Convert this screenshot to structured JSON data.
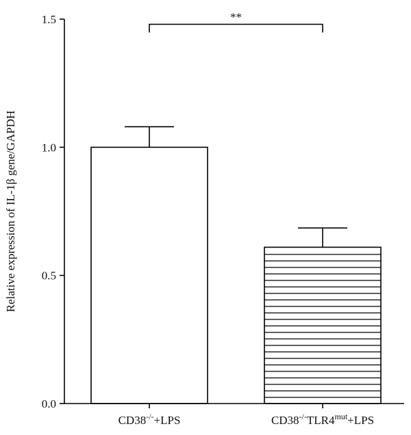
{
  "chart_data": {
    "type": "bar",
    "ylabel": "Relative expression of IL-1β gene/GAPDH",
    "ylim": [
      0,
      1.5
    ],
    "yticks": [
      "0.0",
      "0.5",
      "1.0",
      "1.5"
    ],
    "ytick_values": [
      0,
      0.5,
      1.0,
      1.5
    ],
    "categories": [
      {
        "base": "CD38",
        "sup1": "-/-",
        "mid": "+LPS",
        "sup2": "",
        "tail": ""
      },
      {
        "base": "CD38",
        "sup1": "-/-",
        "mid": "TLR4",
        "sup2": "mut",
        "tail": "+LPS"
      }
    ],
    "values": [
      1.0,
      0.61
    ],
    "errors": [
      0.08,
      0.075
    ],
    "fills": [
      "open",
      "horizontal-hatch"
    ],
    "significance": {
      "label": "**",
      "between": [
        0,
        1
      ],
      "y": 1.48
    },
    "grid": false,
    "legend": "none",
    "colors": {
      "stroke": "#000000",
      "fill": "#ffffff"
    }
  }
}
